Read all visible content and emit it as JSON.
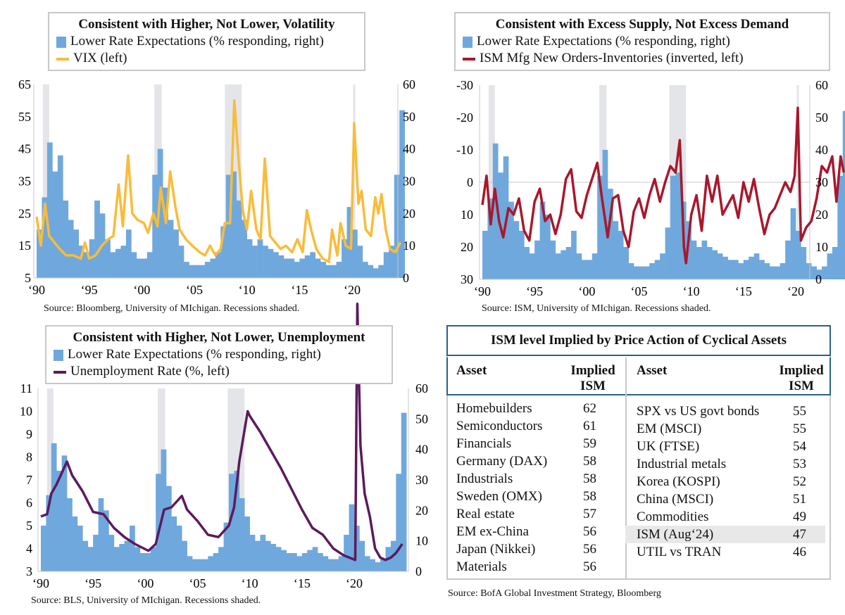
{
  "chart_data": {
    "type": "bar+line",
    "shared_bar_series": {
      "name": "Lower Rate Expectations (% responding, right)",
      "color": "#6fa8dc",
      "x": [
        1990,
        1990.5,
        1991,
        1991.5,
        1992,
        1992.5,
        1993,
        1993.5,
        1994,
        1994.5,
        1995,
        1995.5,
        1996,
        1996.5,
        1997,
        1997.5,
        1998,
        1998.5,
        1999,
        1999.5,
        2000,
        2000.5,
        2001,
        2001.5,
        2002,
        2002.5,
        2003,
        2003.5,
        2004,
        2004.5,
        2005,
        2005.5,
        2006,
        2006.5,
        2007,
        2007.5,
        2008,
        2008.5,
        2009,
        2009.5,
        2010,
        2010.5,
        2011,
        2011.5,
        2012,
        2012.5,
        2013,
        2013.5,
        2014,
        2014.5,
        2015,
        2015.5,
        2016,
        2016.5,
        2017,
        2017.5,
        2018,
        2018.5,
        2019,
        2019.5,
        2020,
        2020.5,
        2021,
        2021.5,
        2022,
        2022.5,
        2023,
        2023.5,
        2024,
        2024.5
      ],
      "values": [
        15,
        25,
        42,
        33,
        38,
        24,
        18,
        15,
        10,
        8,
        12,
        24,
        20,
        12,
        8,
        9,
        10,
        15,
        8,
        6,
        6,
        8,
        32,
        40,
        28,
        18,
        15,
        10,
        5,
        4,
        4,
        4,
        5,
        6,
        8,
        16,
        32,
        33,
        24,
        18,
        12,
        10,
        12,
        10,
        9,
        8,
        7,
        6,
        6,
        5,
        6,
        7,
        8,
        6,
        5,
        4,
        4,
        5,
        12,
        22,
        15,
        10,
        5,
        4,
        3,
        4,
        8,
        10,
        32,
        52
      ]
    },
    "recessions": [
      [
        1990.6,
        1991.2
      ],
      [
        2001.2,
        2001.9
      ],
      [
        2007.9,
        2009.5
      ],
      [
        2020.1,
        2020.3
      ]
    ],
    "charts": [
      {
        "title": "Consistent with Higher, Not Lower, Volatility",
        "legend": [
          "Lower Rate Expectations (% responding, right)",
          "VIX (left)"
        ],
        "line": {
          "name": "VIX (left)",
          "color": "#f9bc3a",
          "points": [
            [
              1990,
              24
            ],
            [
              1990.4,
              15
            ],
            [
              1990.8,
              28
            ],
            [
              1991.2,
              18
            ],
            [
              1991.7,
              16
            ],
            [
              1992.2,
              14
            ],
            [
              1992.8,
              12
            ],
            [
              1993.5,
              12
            ],
            [
              1994.2,
              11
            ],
            [
              1994.6,
              16
            ],
            [
              1995,
              11
            ],
            [
              1995.6,
              12
            ],
            [
              1996.2,
              15
            ],
            [
              1996.8,
              17
            ],
            [
              1997.3,
              18
            ],
            [
              1997.8,
              34
            ],
            [
              1998.2,
              21
            ],
            [
              1998.7,
              43
            ],
            [
              1999.1,
              25
            ],
            [
              1999.6,
              23
            ],
            [
              2000.2,
              22
            ],
            [
              2000.6,
              19
            ],
            [
              2001.1,
              25
            ],
            [
              2001.5,
              21
            ],
            [
              2001.8,
              33
            ],
            [
              2002.3,
              22
            ],
            [
              2002.7,
              38
            ],
            [
              2003.2,
              27
            ],
            [
              2003.6,
              20
            ],
            [
              2004.2,
              17
            ],
            [
              2004.8,
              15
            ],
            [
              2005.5,
              13
            ],
            [
              2006,
              12
            ],
            [
              2006.5,
              15
            ],
            [
              2007,
              12
            ],
            [
              2007.5,
              14
            ],
            [
              2007.9,
              22
            ],
            [
              2008.4,
              22
            ],
            [
              2008.8,
              60
            ],
            [
              2009.2,
              42
            ],
            [
              2009.6,
              26
            ],
            [
              2010,
              20
            ],
            [
              2010.4,
              32
            ],
            [
              2010.9,
              20
            ],
            [
              2011.3,
              17
            ],
            [
              2011.7,
              42
            ],
            [
              2012.2,
              18
            ],
            [
              2012.7,
              16
            ],
            [
              2013.2,
              14
            ],
            [
              2013.7,
              15
            ],
            [
              2014.3,
              13
            ],
            [
              2014.8,
              17
            ],
            [
              2015.3,
              13
            ],
            [
              2015.7,
              26
            ],
            [
              2016.1,
              20
            ],
            [
              2016.6,
              14
            ],
            [
              2017.2,
              11
            ],
            [
              2017.8,
              10
            ],
            [
              2018.1,
              20
            ],
            [
              2018.6,
              12
            ],
            [
              2018.9,
              22
            ],
            [
              2019.4,
              15
            ],
            [
              2019.9,
              14
            ],
            [
              2020.2,
              53
            ],
            [
              2020.6,
              28
            ],
            [
              2020.9,
              32
            ],
            [
              2021.3,
              20
            ],
            [
              2021.8,
              18
            ],
            [
              2022.2,
              30
            ],
            [
              2022.5,
              25
            ],
            [
              2022.8,
              31
            ],
            [
              2023.2,
              20
            ],
            [
              2023.6,
              14
            ],
            [
              2024.1,
              13
            ],
            [
              2024.6,
              16
            ]
          ]
        },
        "left_ticks": [
          "65",
          "55",
          "45",
          "35",
          "25",
          "15",
          "5"
        ],
        "left_range": [
          5,
          65
        ],
        "right_ticks": [
          "60",
          "50",
          "40",
          "30",
          "20",
          "10",
          "0"
        ],
        "x_ticks": [
          "‘90",
          "‘95",
          "‘00",
          "‘05",
          "‘10",
          "‘15",
          "‘20"
        ],
        "source": "Source: Bloomberg, University of MIchigan. Recessions shaded."
      },
      {
        "title": "Consistent with Excess Supply, Not Excess Demand",
        "legend": [
          "Lower Rate Expectations (% responding, right)",
          "ISM Mfg New Orders-Inventories (inverted, left)"
        ],
        "line": {
          "name": "ISM Mfg New Orders-Inventories (inverted, left)",
          "color": "#a8182d",
          "inverted": true,
          "points": [
            [
              1990,
              7
            ],
            [
              1990.4,
              -2
            ],
            [
              1990.8,
              13
            ],
            [
              1991.2,
              2
            ],
            [
              1991.6,
              12
            ],
            [
              1992,
              17
            ],
            [
              1992.5,
              8
            ],
            [
              1993,
              10
            ],
            [
              1993.5,
              5
            ],
            [
              1994,
              15
            ],
            [
              1994.5,
              18
            ],
            [
              1995,
              6
            ],
            [
              1995.5,
              2
            ],
            [
              1996,
              12
            ],
            [
              1996.5,
              10
            ],
            [
              1997,
              16
            ],
            [
              1997.5,
              10
            ],
            [
              1998,
              -1
            ],
            [
              1998.5,
              -4
            ],
            [
              1999,
              9
            ],
            [
              1999.5,
              11
            ],
            [
              2000,
              4
            ],
            [
              2000.5,
              -1
            ],
            [
              2001,
              -6
            ],
            [
              2001.5,
              6
            ],
            [
              2002,
              17
            ],
            [
              2002.5,
              5
            ],
            [
              2003,
              4
            ],
            [
              2003.5,
              15
            ],
            [
              2004,
              20
            ],
            [
              2004.5,
              9
            ],
            [
              2005,
              5
            ],
            [
              2005.5,
              11
            ],
            [
              2006,
              4
            ],
            [
              2006.5,
              -1
            ],
            [
              2007,
              6
            ],
            [
              2007.5,
              0
            ],
            [
              2008,
              -5
            ],
            [
              2008.5,
              -3
            ],
            [
              2008.9,
              -13
            ],
            [
              2009.3,
              20
            ],
            [
              2009.5,
              25
            ],
            [
              2010,
              10
            ],
            [
              2010.5,
              4
            ],
            [
              2011,
              15
            ],
            [
              2011.5,
              -2
            ],
            [
              2012,
              6
            ],
            [
              2012.5,
              -2
            ],
            [
              2013,
              10
            ],
            [
              2013.5,
              7
            ],
            [
              2014,
              4
            ],
            [
              2014.5,
              11
            ],
            [
              2015,
              0
            ],
            [
              2015.5,
              6
            ],
            [
              2016,
              -1
            ],
            [
              2016.5,
              8
            ],
            [
              2017,
              16
            ],
            [
              2017.5,
              10
            ],
            [
              2018,
              8
            ],
            [
              2018.5,
              4
            ],
            [
              2019,
              0
            ],
            [
              2019.5,
              3
            ],
            [
              2019.9,
              -2
            ],
            [
              2020.2,
              -23
            ],
            [
              2020.5,
              18
            ],
            [
              2021,
              14
            ],
            [
              2021.5,
              12
            ],
            [
              2022,
              5
            ],
            [
              2022.5,
              -5
            ],
            [
              2023,
              -3
            ],
            [
              2023.5,
              -8
            ],
            [
              2023.9,
              6
            ],
            [
              2024.3,
              -8
            ],
            [
              2024.6,
              -3
            ]
          ]
        },
        "left_ticks": [
          "-30",
          "-20",
          "-10",
          "0",
          "10",
          "20",
          "30"
        ],
        "left_range": [
          -30,
          30
        ],
        "right_ticks": [
          "60",
          "50",
          "40",
          "30",
          "20",
          "10",
          "0"
        ],
        "x_ticks": [
          "‘90",
          "‘95",
          "‘00",
          "‘05",
          "‘10",
          "‘15",
          "‘20"
        ],
        "source": "Source:  ISM, University of MIchigan. Recessions shaded."
      },
      {
        "title": "Consistent with Higher, Not Lower, Unemployment",
        "legend": [
          "Lower Rate Expectations (% responding, right)",
          "Unemployment Rate (%, left)"
        ],
        "line": {
          "name": "Unemployment Rate (%, left)",
          "color": "#5c1a5e",
          "points": [
            [
              1990,
              5.4
            ],
            [
              1990.6,
              5.5
            ],
            [
              1991,
              6.4
            ],
            [
              1991.5,
              6.8
            ],
            [
              1992.5,
              7.8
            ],
            [
              1993,
              7.2
            ],
            [
              1994,
              6.5
            ],
            [
              1995,
              5.6
            ],
            [
              1996,
              5.5
            ],
            [
              1997,
              4.9
            ],
            [
              1998,
              4.5
            ],
            [
              1999,
              4.2
            ],
            [
              2000.3,
              3.9
            ],
            [
              2001,
              4.2
            ],
            [
              2001.8,
              5.7
            ],
            [
              2002.5,
              5.8
            ],
            [
              2003.5,
              6.3
            ],
            [
              2004,
              5.7
            ],
            [
              2005,
              5.2
            ],
            [
              2006,
              4.6
            ],
            [
              2007,
              4.5
            ],
            [
              2008,
              5.0
            ],
            [
              2008.5,
              5.8
            ],
            [
              2009,
              7.8
            ],
            [
              2009.8,
              10.0
            ],
            [
              2010,
              9.8
            ],
            [
              2011,
              9.1
            ],
            [
              2012,
              8.3
            ],
            [
              2013,
              7.5
            ],
            [
              2014,
              6.6
            ],
            [
              2015,
              5.7
            ],
            [
              2016,
              4.9
            ],
            [
              2017,
              4.6
            ],
            [
              2018,
              4.0
            ],
            [
              2019,
              3.7
            ],
            [
              2020.1,
              3.5
            ],
            [
              2020.3,
              14.7
            ],
            [
              2020.6,
              8.5
            ],
            [
              2021,
              6.4
            ],
            [
              2021.5,
              5.4
            ],
            [
              2022,
              4.0
            ],
            [
              2022.5,
              3.6
            ],
            [
              2023,
              3.5
            ],
            [
              2023.5,
              3.6
            ],
            [
              2024,
              3.8
            ],
            [
              2024.6,
              4.2
            ]
          ]
        },
        "left_ticks": [
          "11",
          "10",
          "9",
          "8",
          "7",
          "6",
          "5",
          "4",
          "3"
        ],
        "left_range": [
          3,
          11
        ],
        "right_ticks": [
          "60",
          "50",
          "40",
          "30",
          "20",
          "10",
          "0"
        ],
        "x_ticks": [
          "‘90",
          "‘95",
          "‘00",
          "‘05",
          "‘10",
          "‘15",
          "‘20"
        ],
        "source": "Source: BLS, University of MIchigan. Recessions shaded."
      }
    ]
  },
  "table": {
    "title": "ISM level Implied by Price Action of Cyclical Assets",
    "col_asset": "Asset",
    "col_implied_1": "Implied",
    "col_implied_2": "ISM",
    "left": [
      [
        "Homebuilders",
        "62"
      ],
      [
        "Semiconductors",
        "61"
      ],
      [
        "Financials",
        "59"
      ],
      [
        "Germany (DAX)",
        "58"
      ],
      [
        "Industrials",
        "58"
      ],
      [
        "Sweden (OMX)",
        "58"
      ],
      [
        "Real estate",
        "57"
      ],
      [
        "EM ex-China",
        "56"
      ],
      [
        "Japan (Nikkei)",
        "56"
      ],
      [
        "Materials",
        "56"
      ]
    ],
    "right": [
      [
        "SPX vs US govt bonds",
        "55"
      ],
      [
        "EM (MSCI)",
        "55"
      ],
      [
        "UK (FTSE)",
        "54"
      ],
      [
        "Industrial metals",
        "53"
      ],
      [
        "Korea (KOSPI)",
        "52"
      ],
      [
        "China (MSCI)",
        "51"
      ],
      [
        "Commodities",
        "49"
      ],
      [
        "ISM (Aug‘24)",
        "47"
      ],
      [
        "UTIL vs TRAN",
        "46"
      ]
    ],
    "highlight_row": "ISM (Aug‘24)",
    "source": "Source:  BofA Global Investment Strategy, Bloomberg"
  }
}
